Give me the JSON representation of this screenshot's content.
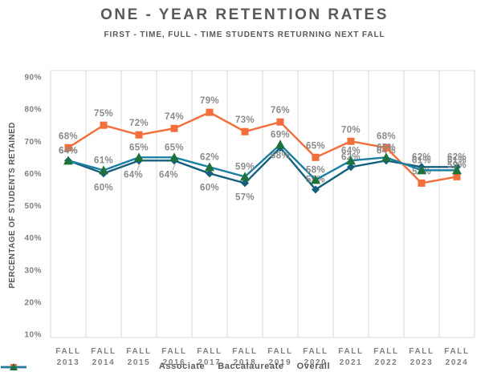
{
  "title": "ONE - YEAR RETENTION RATES",
  "subtitle": "FIRST - TIME, FULL - TIME STUDENTS RETURNING NEXT FALL",
  "y_axis_title": "PERCENTAGE OF STUDENTS RETAINED",
  "style": {
    "grid_color": "#d9d9d9",
    "data_label_color": "#8a8a8a",
    "axis_text_color": "#7f7f7f",
    "title_text_color": "#595959",
    "leader_line_color": "#a6a6a6"
  },
  "chart_data": {
    "type": "line",
    "categories": [
      "FALL 2013",
      "FALL 2014",
      "FALL 2015",
      "FALL 2016",
      "FALL 2017",
      "FALL 2018",
      "FALL 2019",
      "FALL 2020",
      "FALL 2021",
      "FALL 2022",
      "FALL 2023",
      "FALL 2024"
    ],
    "series": [
      {
        "name": "Associate",
        "marker": "diamond",
        "line_color": "#14607c",
        "marker_color": "#14607c",
        "values": [
          64,
          60,
          64,
          64,
          60,
          57,
          68,
          55,
          62,
          64,
          62,
          62
        ]
      },
      {
        "name": "Baccalaureate",
        "marker": "square",
        "line_color": "#f26e3b",
        "marker_color": "#f26e3b",
        "values": [
          68,
          75,
          72,
          74,
          79,
          73,
          76,
          65,
          70,
          68,
          57,
          59
        ]
      },
      {
        "name": "Overall",
        "marker": "triangle",
        "line_color": "#1b7fa3",
        "marker_color": "#1e7239",
        "values": [
          64,
          61,
          65,
          65,
          62,
          59,
          69,
          58,
          64,
          65,
          61,
          61
        ]
      }
    ],
    "data_labels": true,
    "y_ticks": [
      "90%",
      "80%",
      "70%",
      "60%",
      "50%",
      "40%",
      "30%",
      "20%",
      "10%"
    ],
    "ylim": [
      10,
      92
    ],
    "grid": "vertical",
    "legend_position": "bottom",
    "xlabel": "",
    "ylabel": "PERCENTAGE OF STUDENTS RETAINED"
  }
}
